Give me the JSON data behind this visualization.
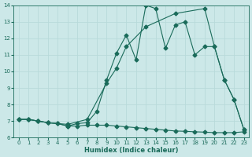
{
  "xlabel": "Humidex (Indice chaleur)",
  "xlim": [
    -0.5,
    23.5
  ],
  "ylim": [
    6,
    14
  ],
  "yticks": [
    6,
    7,
    8,
    9,
    10,
    11,
    12,
    13,
    14
  ],
  "xticks": [
    0,
    1,
    2,
    3,
    4,
    5,
    6,
    7,
    8,
    9,
    10,
    11,
    12,
    13,
    14,
    15,
    16,
    17,
    18,
    19,
    20,
    21,
    22,
    23
  ],
  "bg_color": "#cce8e8",
  "line_color": "#1a6b5a",
  "grid_color": "#b8dada",
  "series": [
    {
      "x": [
        0,
        1,
        2,
        3,
        4,
        5,
        6,
        7,
        8,
        9,
        10,
        11,
        12,
        13,
        14,
        15,
        16,
        17,
        18,
        19,
        20,
        21,
        22,
        23
      ],
      "y": [
        7.1,
        7.1,
        7.0,
        6.9,
        6.85,
        6.7,
        6.85,
        6.9,
        7.6,
        9.5,
        11.1,
        12.2,
        10.7,
        14.0,
        13.8,
        11.4,
        12.8,
        13.0,
        11.0,
        11.5,
        11.5,
        9.5,
        8.3,
        6.5
      ],
      "marker": "D",
      "markersize": 2.5,
      "linewidth": 0.8
    },
    {
      "x": [
        0,
        1,
        2,
        3,
        5,
        7,
        9,
        10,
        11,
        13,
        16,
        19,
        20,
        21,
        22,
        23
      ],
      "y": [
        7.1,
        7.1,
        7.0,
        6.9,
        6.8,
        7.1,
        9.3,
        10.2,
        11.5,
        12.7,
        13.5,
        13.8,
        11.5,
        9.5,
        8.3,
        6.5
      ],
      "marker": "D",
      "markersize": 2.5,
      "linewidth": 0.8
    },
    {
      "x": [
        0,
        1,
        2,
        3,
        4,
        5,
        6,
        7,
        8,
        9,
        10,
        11,
        12,
        13,
        14,
        15,
        16,
        17,
        18,
        19,
        20,
        21,
        22,
        23
      ],
      "y": [
        7.1,
        7.1,
        7.0,
        6.9,
        6.85,
        6.7,
        6.7,
        6.75,
        6.75,
        6.75,
        6.7,
        6.65,
        6.6,
        6.55,
        6.5,
        6.45,
        6.4,
        6.38,
        6.35,
        6.33,
        6.3,
        6.3,
        6.3,
        6.35
      ],
      "marker": "D",
      "markersize": 2.5,
      "linewidth": 0.8
    }
  ]
}
